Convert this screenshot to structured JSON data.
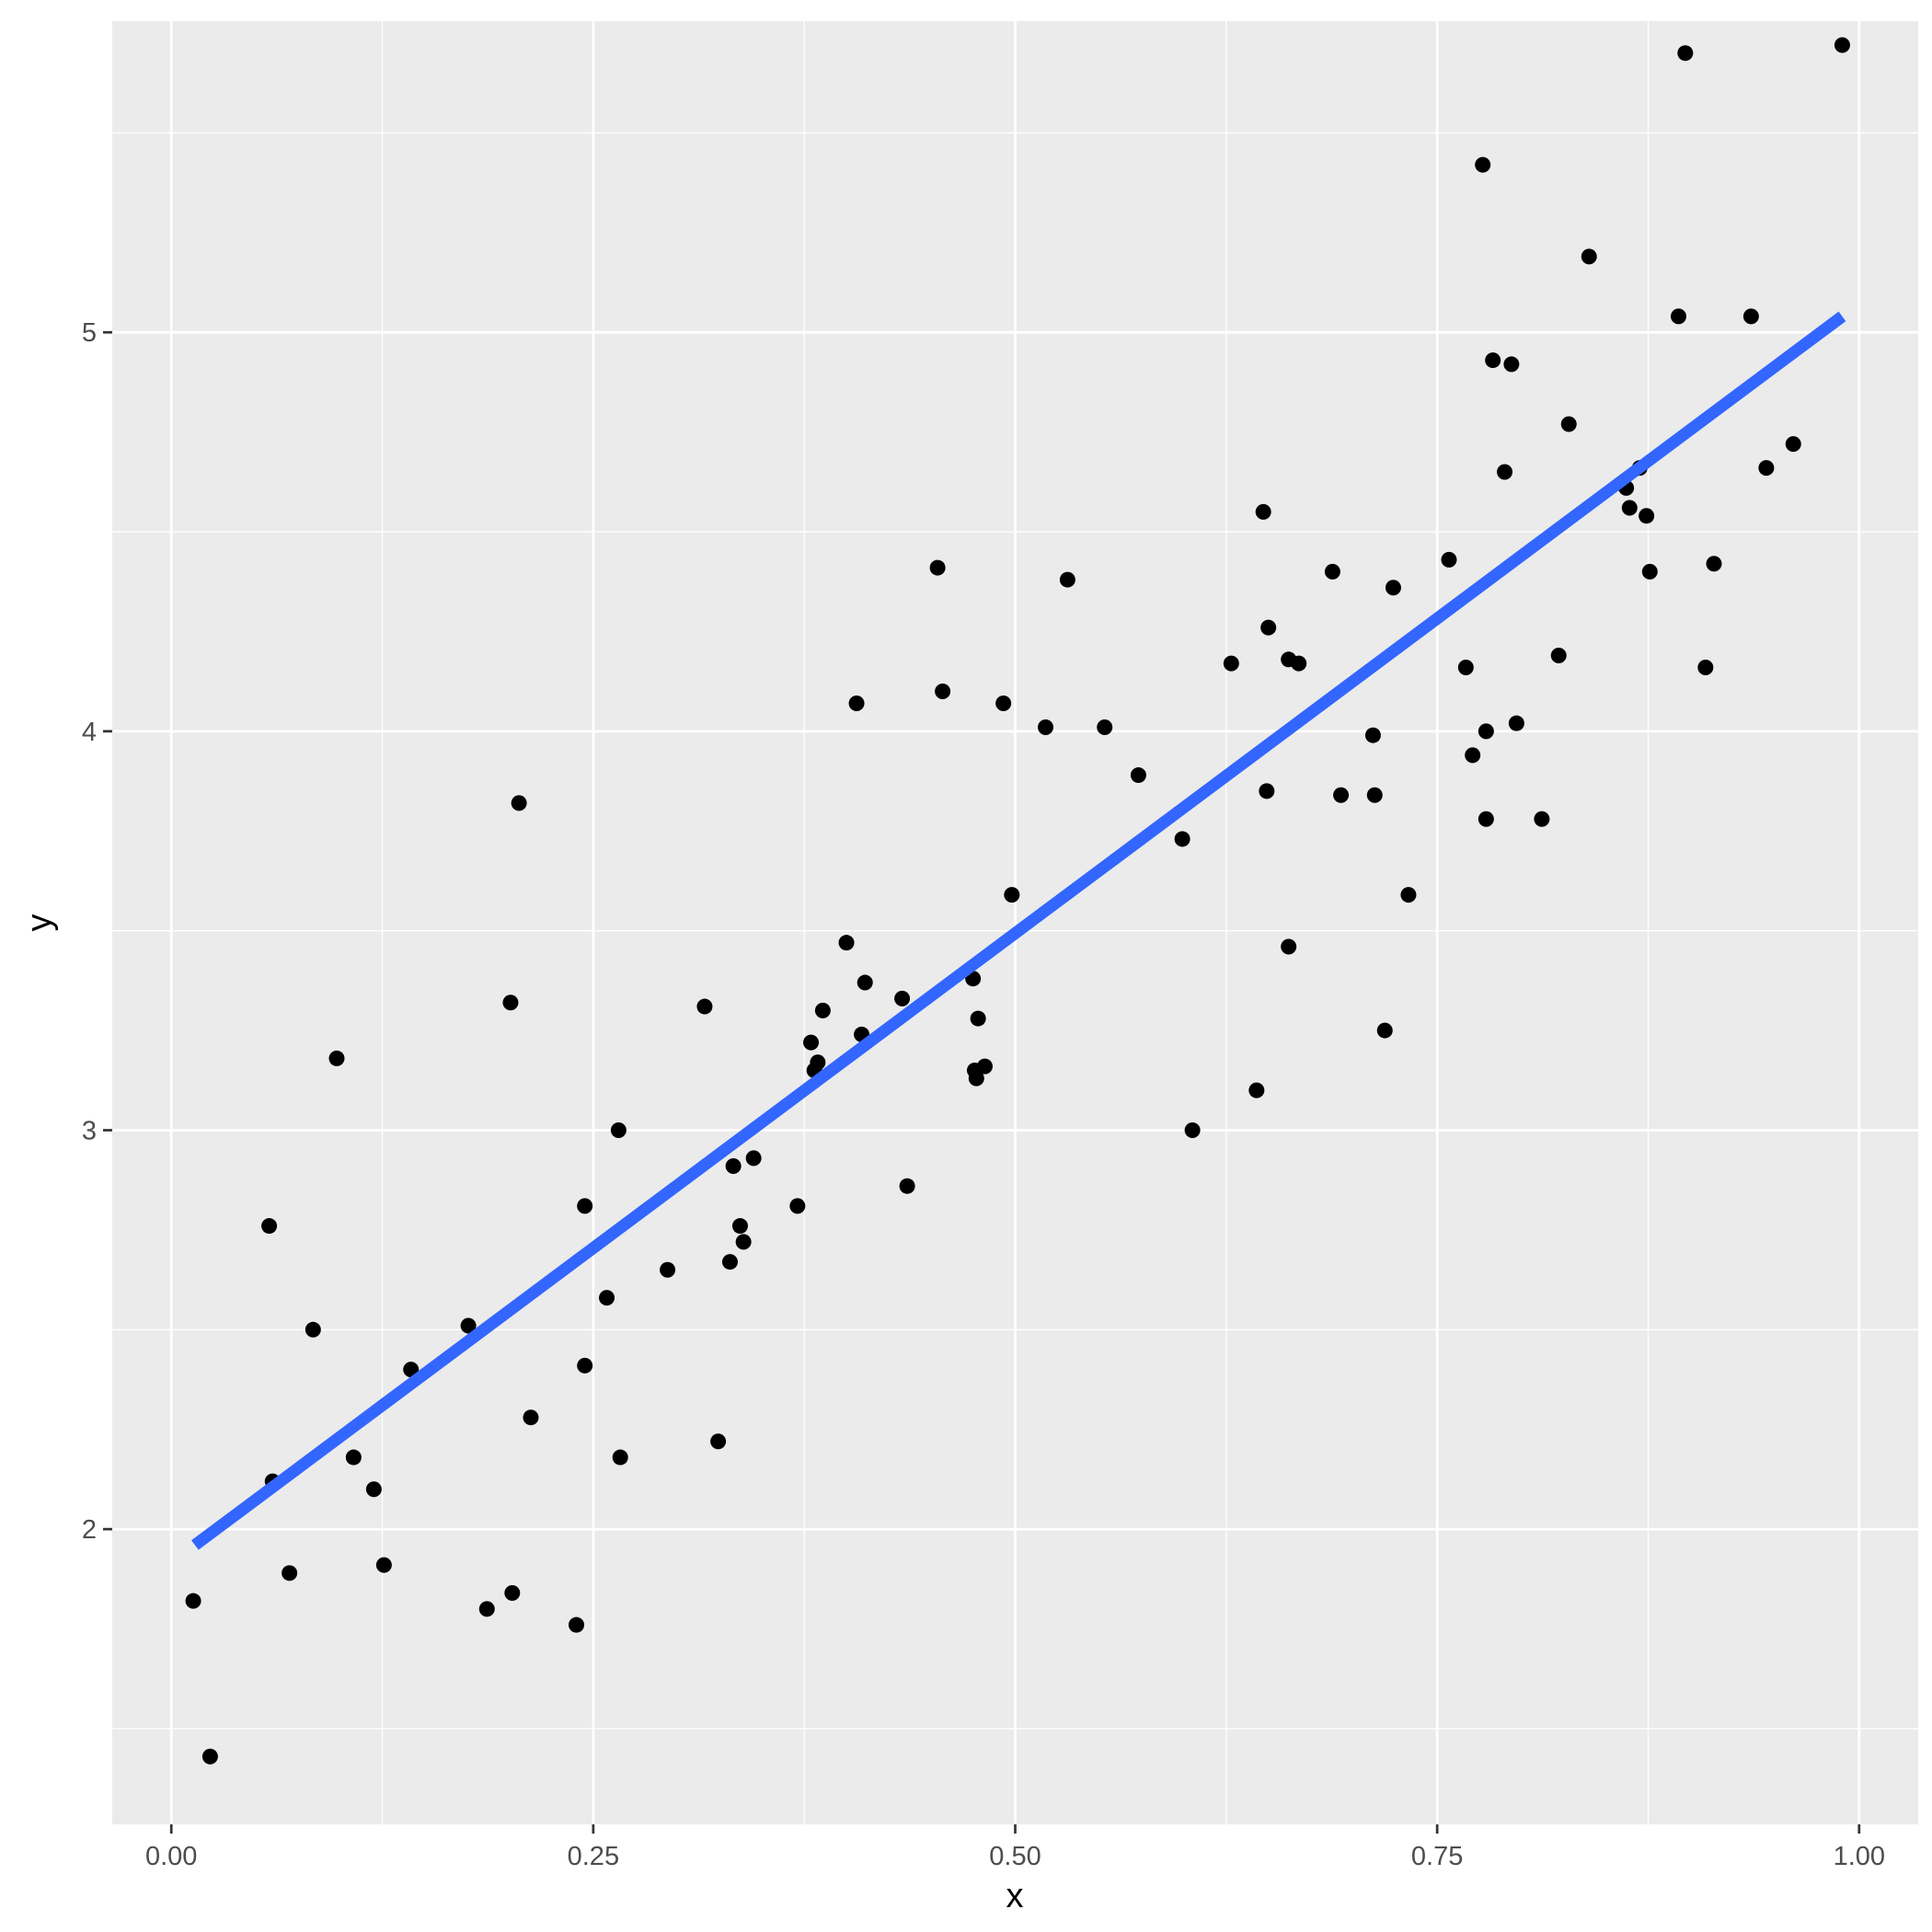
{
  "chart_data": {
    "type": "scatter",
    "title": "",
    "xlabel": "x",
    "ylabel": "y",
    "xlim": [
      -0.035,
      1.035
    ],
    "ylim": [
      1.26,
      5.78
    ],
    "x_ticks": [
      {
        "value": 0.0,
        "label": "0.00"
      },
      {
        "value": 0.25,
        "label": "0.25"
      },
      {
        "value": 0.5,
        "label": "0.50"
      },
      {
        "value": 0.75,
        "label": "0.75"
      },
      {
        "value": 1.0,
        "label": "1.00"
      }
    ],
    "y_ticks": [
      {
        "value": 2,
        "label": "2"
      },
      {
        "value": 3,
        "label": "3"
      },
      {
        "value": 4,
        "label": "4"
      },
      {
        "value": 5,
        "label": "5"
      }
    ],
    "grid": true,
    "colors": {
      "panel_background": "#ebebeb",
      "gridline": "#ffffff",
      "point": "#000000",
      "fit_line": "#3366ff"
    },
    "fit_line": {
      "x": [
        0.014,
        0.99
      ],
      "y": [
        1.96,
        5.04
      ]
    },
    "points": [
      [
        0.013,
        1.82
      ],
      [
        0.023,
        1.43
      ],
      [
        0.058,
        2.76
      ],
      [
        0.06,
        2.12
      ],
      [
        0.07,
        1.89
      ],
      [
        0.084,
        2.5
      ],
      [
        0.098,
        3.18
      ],
      [
        0.108,
        2.18
      ],
      [
        0.12,
        2.1
      ],
      [
        0.126,
        1.91
      ],
      [
        0.142,
        2.4
      ],
      [
        0.176,
        2.51
      ],
      [
        0.187,
        1.8
      ],
      [
        0.201,
        3.32
      ],
      [
        0.202,
        1.84
      ],
      [
        0.206,
        3.82
      ],
      [
        0.213,
        2.28
      ],
      [
        0.24,
        1.76
      ],
      [
        0.245,
        2.81
      ],
      [
        0.245,
        2.41
      ],
      [
        0.258,
        2.58
      ],
      [
        0.265,
        3.0
      ],
      [
        0.266,
        2.18
      ],
      [
        0.294,
        2.65
      ],
      [
        0.316,
        3.31
      ],
      [
        0.324,
        2.22
      ],
      [
        0.331,
        2.67
      ],
      [
        0.333,
        2.91
      ],
      [
        0.337,
        2.76
      ],
      [
        0.339,
        2.72
      ],
      [
        0.345,
        2.93
      ],
      [
        0.371,
        2.81
      ],
      [
        0.379,
        3.22
      ],
      [
        0.381,
        3.15
      ],
      [
        0.383,
        3.17
      ],
      [
        0.386,
        3.3
      ],
      [
        0.4,
        3.47
      ],
      [
        0.406,
        4.07
      ],
      [
        0.409,
        3.24
      ],
      [
        0.411,
        3.37
      ],
      [
        0.433,
        3.33
      ],
      [
        0.436,
        2.86
      ],
      [
        0.454,
        4.41
      ],
      [
        0.457,
        4.1
      ],
      [
        0.475,
        3.38
      ],
      [
        0.476,
        3.15
      ],
      [
        0.477,
        3.13
      ],
      [
        0.478,
        3.28
      ],
      [
        0.482,
        3.16
      ],
      [
        0.493,
        4.07
      ],
      [
        0.498,
        3.59
      ],
      [
        0.518,
        4.01
      ],
      [
        0.531,
        4.38
      ],
      [
        0.553,
        4.01
      ],
      [
        0.573,
        3.89
      ],
      [
        0.599,
        3.73
      ],
      [
        0.605,
        3.0
      ],
      [
        0.628,
        4.17
      ],
      [
        0.643,
        3.1
      ],
      [
        0.647,
        4.55
      ],
      [
        0.649,
        3.85
      ],
      [
        0.65,
        4.26
      ],
      [
        0.662,
        3.46
      ],
      [
        0.662,
        4.18
      ],
      [
        0.668,
        4.17
      ],
      [
        0.688,
        4.4
      ],
      [
        0.693,
        3.84
      ],
      [
        0.712,
        3.99
      ],
      [
        0.713,
        3.84
      ],
      [
        0.719,
        3.25
      ],
      [
        0.724,
        4.36
      ],
      [
        0.733,
        3.59
      ],
      [
        0.757,
        4.43
      ],
      [
        0.767,
        4.16
      ],
      [
        0.771,
        3.94
      ],
      [
        0.777,
        5.42
      ],
      [
        0.779,
        4.0
      ],
      [
        0.779,
        3.78
      ],
      [
        0.783,
        4.93
      ],
      [
        0.79,
        4.65
      ],
      [
        0.794,
        4.92
      ],
      [
        0.797,
        4.02
      ],
      [
        0.812,
        3.78
      ],
      [
        0.822,
        4.19
      ],
      [
        0.828,
        4.77
      ],
      [
        0.84,
        5.19
      ],
      [
        0.862,
        4.61
      ],
      [
        0.864,
        4.56
      ],
      [
        0.87,
        4.66
      ],
      [
        0.874,
        4.54
      ],
      [
        0.876,
        4.4
      ],
      [
        0.893,
        5.04
      ],
      [
        0.897,
        5.7
      ],
      [
        0.909,
        4.16
      ],
      [
        0.914,
        4.42
      ],
      [
        0.936,
        5.04
      ],
      [
        0.945,
        4.66
      ],
      [
        0.961,
        4.72
      ],
      [
        0.99,
        5.72
      ]
    ]
  }
}
